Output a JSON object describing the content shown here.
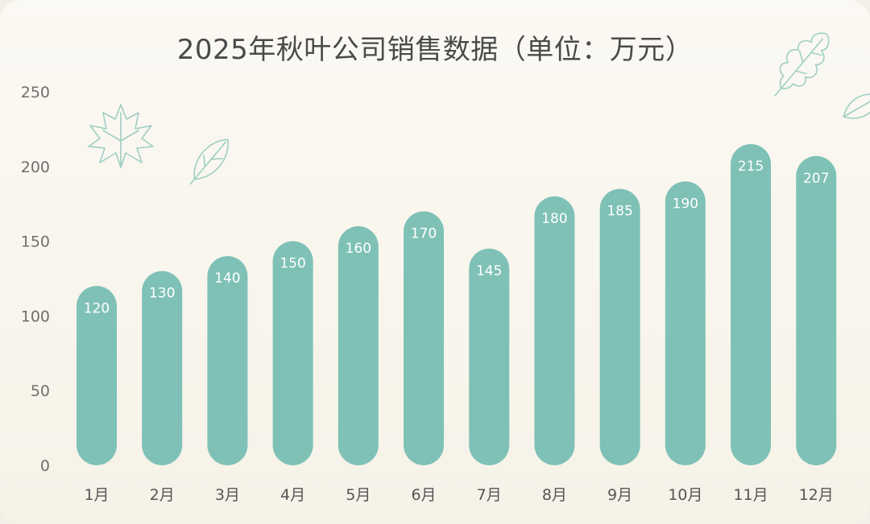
{
  "chart_data": {
    "type": "bar",
    "title": "2025年秋叶公司销售数据（单位：万元）",
    "categories": [
      "1月",
      "2月",
      "3月",
      "4月",
      "5月",
      "6月",
      "7月",
      "8月",
      "9月",
      "10月",
      "11月",
      "12月"
    ],
    "values": [
      120,
      130,
      140,
      150,
      160,
      170,
      145,
      180,
      185,
      190,
      215,
      207
    ],
    "ylim": [
      0,
      250
    ],
    "yticks": [
      0,
      50,
      100,
      150,
      200,
      250
    ],
    "grid": false,
    "legend": "none",
    "bar_color": "#7fc1b6",
    "label_color": "#ffffff"
  },
  "decorations": [
    "maple-leaf-icon",
    "leaf-icon",
    "oak-leaf-icon",
    "leaf-icon"
  ]
}
